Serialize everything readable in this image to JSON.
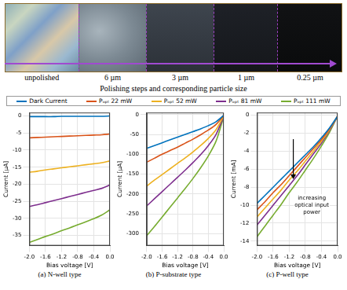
{
  "photo": {
    "segments": [
      "unpolished",
      "6 µm",
      "3 µm",
      "1 µm",
      "0.25 µm"
    ],
    "caption": "Polishing steps and corresponding particle size"
  },
  "chart_data": [
    {
      "type": "line",
      "title": "(a) N-well type",
      "xlabel": "Bias voltage [V]",
      "ylabel": "Current [µA]",
      "x": [
        -2.0,
        -1.8,
        -1.6,
        -1.4,
        -1.2,
        -1.0,
        -0.8,
        -0.6,
        -0.4,
        -0.2,
        0.0
      ],
      "xlim": [
        -2,
        0
      ],
      "xticks": [
        {
          "value": -2,
          "label": "-2.0"
        },
        {
          "value": -1.6,
          "label": "-1.6"
        },
        {
          "value": -1.2,
          "label": "-1.2"
        },
        {
          "value": -0.8,
          "label": "-0.8"
        },
        {
          "value": -0.4,
          "label": "-0.4"
        },
        {
          "value": 0,
          "label": "0.0"
        }
      ],
      "ylim": [
        -38,
        1
      ],
      "yticks": [
        -35,
        -30,
        -25,
        -20,
        -15,
        -10,
        -5,
        0
      ],
      "grid": true,
      "legend": "top",
      "series": [
        {
          "name": "Dark Current",
          "color": "#0072bd",
          "values": [
            -0.2,
            -0.2,
            -0.2,
            -0.2,
            -0.1,
            -0.1,
            -0.1,
            -0.1,
            -0.1,
            -0.1,
            0.0
          ]
        },
        {
          "name": "Pₒₚₜ 22 mW",
          "color": "#d95319",
          "values": [
            -6.4,
            -6.3,
            -6.2,
            -6.1,
            -6.0,
            -5.9,
            -5.8,
            -5.7,
            -5.6,
            -5.5,
            -5.3
          ]
        },
        {
          "name": "Pₒₚₜ 52 mW",
          "color": "#edb120",
          "values": [
            -16.5,
            -16.2,
            -15.8,
            -15.5,
            -15.2,
            -14.9,
            -14.6,
            -14.3,
            -14.0,
            -13.7,
            -13.2
          ]
        },
        {
          "name": "Pₒₚₜ 81 mW",
          "color": "#7e2f8e",
          "values": [
            -26.5,
            -26.0,
            -25.4,
            -24.8,
            -24.2,
            -23.6,
            -23.0,
            -22.4,
            -21.8,
            -21.2,
            -20.2
          ]
        },
        {
          "name": "Pₒₚₜ 111 mW",
          "color": "#77ac30",
          "values": [
            -37.0,
            -36.2,
            -35.3,
            -34.5,
            -33.6,
            -32.8,
            -31.9,
            -31.0,
            -30.1,
            -29.0,
            -27.5
          ]
        }
      ]
    },
    {
      "type": "line",
      "title": "(b) P-substrate type",
      "xlabel": "Bias voltage [V]",
      "ylabel": "Current [µA]",
      "x": [
        -2.0,
        -1.8,
        -1.6,
        -1.4,
        -1.2,
        -1.0,
        -0.8,
        -0.6,
        -0.4,
        -0.2,
        0.0
      ],
      "xlim": [
        -2,
        0
      ],
      "xticks": [
        {
          "value": -2,
          "label": "-2.0"
        },
        {
          "value": -1.6,
          "label": "-1.6"
        },
        {
          "value": -1.2,
          "label": "-1.2"
        },
        {
          "value": -0.8,
          "label": "-0.8"
        },
        {
          "value": -0.4,
          "label": "-0.4"
        },
        {
          "value": 0,
          "label": "0.0"
        }
      ],
      "ylim": [
        -330,
        5
      ],
      "yticks": [
        -300,
        -250,
        -200,
        -150,
        -100,
        -50,
        0
      ],
      "grid": true,
      "legend": "top",
      "series": [
        {
          "name": "Dark Current",
          "color": "#0072bd",
          "values": [
            -85,
            -78,
            -71,
            -64,
            -57,
            -50,
            -43,
            -36,
            -28,
            -18,
            -2
          ]
        },
        {
          "name": "Pₒₚₜ 22 mW",
          "color": "#d95319",
          "values": [
            -120,
            -110,
            -100,
            -91,
            -82,
            -72,
            -62,
            -51,
            -39,
            -25,
            -2
          ]
        },
        {
          "name": "Pₒₚₜ 52 mW",
          "color": "#edb120",
          "values": [
            -180,
            -165,
            -151,
            -137,
            -123,
            -109,
            -94,
            -78,
            -60,
            -38,
            -3
          ]
        },
        {
          "name": "Pₒₚₜ 81 mW",
          "color": "#7e2f8e",
          "values": [
            -230,
            -212,
            -194,
            -176,
            -158,
            -140,
            -121,
            -101,
            -78,
            -50,
            -4
          ]
        },
        {
          "name": "Pₒₚₜ 111 mW",
          "color": "#77ac30",
          "values": [
            -305,
            -282,
            -258,
            -234,
            -210,
            -186,
            -161,
            -134,
            -104,
            -67,
            -5
          ]
        }
      ]
    },
    {
      "type": "line",
      "title": "(c) P-well type",
      "xlabel": "Bias voltage [V]",
      "ylabel": "Current [mA]",
      "x": [
        -2.0,
        -1.8,
        -1.6,
        -1.4,
        -1.2,
        -1.0,
        -0.8,
        -0.6,
        -0.4,
        -0.2,
        0.0
      ],
      "xlim": [
        -2,
        0
      ],
      "xticks": [
        {
          "value": -2,
          "label": "-2.0"
        },
        {
          "value": -1.6,
          "label": "-1.6"
        },
        {
          "value": -1.2,
          "label": "-1.2"
        },
        {
          "value": -0.8,
          "label": "-0.8"
        },
        {
          "value": -0.4,
          "label": "-0.4"
        },
        {
          "value": 0,
          "label": "0.0"
        }
      ],
      "ylim": [
        -14.5,
        0.3
      ],
      "yticks": [
        -14,
        -12,
        -10,
        -8,
        -6,
        -4,
        -2,
        0
      ],
      "grid": true,
      "legend": "top",
      "annotations": [
        {
          "text": "increasing optical input power"
        }
      ],
      "series": [
        {
          "name": "Dark Current",
          "color": "#0072bd",
          "values": [
            -9.8,
            -8.9,
            -8.0,
            -7.1,
            -6.2,
            -5.3,
            -4.4,
            -3.5,
            -2.5,
            -1.4,
            -0.1
          ]
        },
        {
          "name": "Pₒₚₜ 22 mW",
          "color": "#d95319",
          "values": [
            -10.5,
            -9.6,
            -8.6,
            -7.7,
            -6.7,
            -5.7,
            -4.7,
            -3.7,
            -2.7,
            -1.5,
            -0.1
          ]
        },
        {
          "name": "Pₒₚₜ 52 mW",
          "color": "#edb120",
          "values": [
            -11.3,
            -10.3,
            -9.3,
            -8.3,
            -7.2,
            -6.2,
            -5.1,
            -4.0,
            -2.9,
            -1.6,
            -0.1
          ]
        },
        {
          "name": "Pₒₚₜ 81 mW",
          "color": "#7e2f8e",
          "values": [
            -12.2,
            -11.1,
            -10.0,
            -8.9,
            -7.8,
            -6.7,
            -5.5,
            -4.3,
            -3.1,
            -1.7,
            -0.1
          ]
        },
        {
          "name": "Pₒₚₜ 111 mW",
          "color": "#77ac30",
          "values": [
            -13.5,
            -12.3,
            -11.1,
            -9.9,
            -8.6,
            -7.4,
            -6.1,
            -4.8,
            -3.4,
            -1.9,
            -0.1
          ]
        }
      ]
    }
  ]
}
